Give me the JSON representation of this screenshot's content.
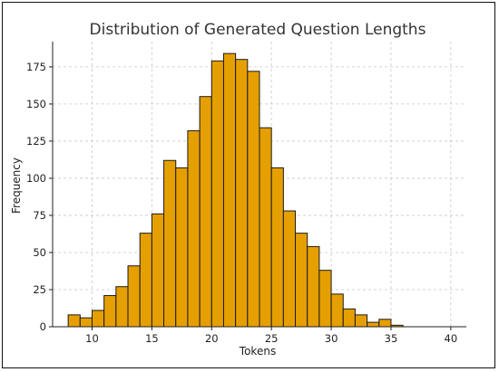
{
  "chart_data": {
    "type": "bar",
    "title": "Distribution of Generated Question Lengths",
    "xlabel": "Tokens",
    "ylabel": "Frequency",
    "xlim": [
      6.7,
      41.3
    ],
    "ylim": [
      0,
      192
    ],
    "xticks": [
      10,
      15,
      20,
      25,
      30,
      35,
      40
    ],
    "yticks": [
      0,
      25,
      50,
      75,
      100,
      125,
      150,
      175
    ],
    "bin_start": 8,
    "bin_width": 1,
    "values": [
      8,
      6,
      11,
      21,
      27,
      41,
      63,
      76,
      112,
      107,
      132,
      155,
      179,
      184,
      180,
      172,
      134,
      107,
      78,
      63,
      54,
      38,
      22,
      12,
      8,
      3,
      5,
      1
    ],
    "bar_color": "#E69F00",
    "edge_color": "#1a1a1a",
    "grid": true,
    "grid_style": "dashed"
  }
}
